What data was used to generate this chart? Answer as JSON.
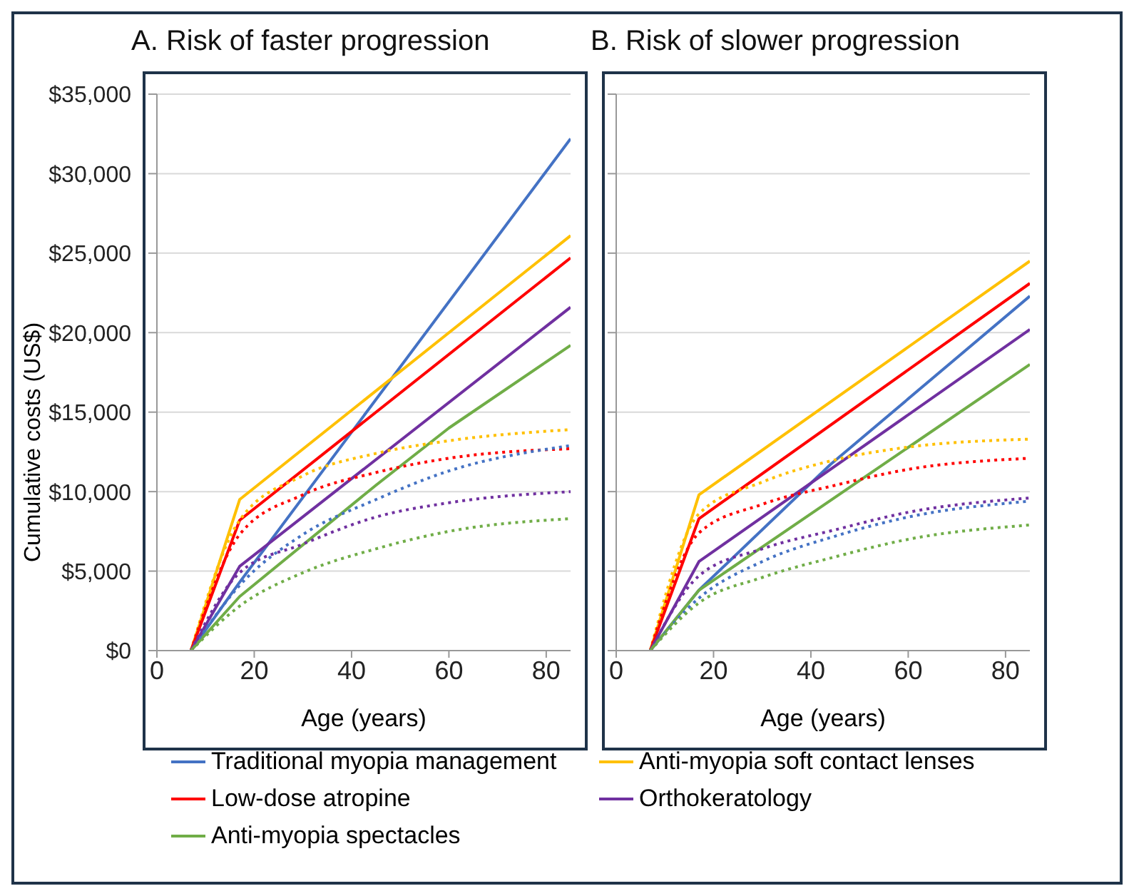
{
  "chart_data": [
    {
      "type": "line",
      "title": "A. Risk of faster progression",
      "xlabel": "Age (years)",
      "ylabel": "Cumulative costs (US$)",
      "xlim": [
        0,
        85
      ],
      "xticks": [
        0,
        20,
        40,
        60,
        80
      ],
      "ylim": [
        0,
        35000
      ],
      "yticks": [
        {
          "value": 0,
          "label": "$0"
        },
        {
          "value": 5000,
          "label": "$5,000"
        },
        {
          "value": 10000,
          "label": "$10,000"
        },
        {
          "value": 15000,
          "label": "$15,000"
        },
        {
          "value": 20000,
          "label": "$20,000"
        },
        {
          "value": 25000,
          "label": "$25,000"
        },
        {
          "value": 30000,
          "label": "$30,000"
        },
        {
          "value": 35000,
          "label": "$35,000"
        }
      ],
      "grid": "y",
      "legend": "bottom",
      "series": [
        {
          "name": "Traditional myopia management",
          "color": "#4472c4",
          "x": [
            7,
            17,
            85
          ],
          "values": [
            0,
            4300,
            32200
          ]
        },
        {
          "name": "Anti-myopia soft contact lenses",
          "color": "#ffc000",
          "x": [
            7,
            17,
            85
          ],
          "values": [
            0,
            9500,
            26100
          ]
        },
        {
          "name": "Low-dose atropine",
          "color": "#ff0000",
          "x": [
            7,
            17,
            85
          ],
          "values": [
            0,
            8200,
            24700
          ]
        },
        {
          "name": "Orthokeratology",
          "color": "#7030a0",
          "x": [
            7,
            17,
            85
          ],
          "values": [
            0,
            5300,
            21600
          ]
        },
        {
          "name": "Anti-myopia spectacles",
          "color": "#70ad47",
          "x": [
            7,
            17,
            45,
            60,
            85
          ],
          "values": [
            0,
            3400,
            10400,
            14000,
            19200
          ]
        },
        {
          "color": "#ffc000",
          "line_style": "dotted",
          "x": [
            7,
            17,
            30,
            45,
            60,
            85
          ],
          "values": [
            0,
            8200,
            11000,
            12400,
            13200,
            13900
          ]
        },
        {
          "color": "#ff0000",
          "line_style": "dotted",
          "x": [
            7,
            17,
            30,
            45,
            60,
            85
          ],
          "values": [
            0,
            7300,
            9800,
            11200,
            12100,
            12700
          ]
        },
        {
          "color": "#4472c4",
          "line_style": "dotted",
          "x": [
            7,
            17,
            30,
            45,
            60,
            85
          ],
          "values": [
            0,
            4100,
            7300,
            9500,
            11300,
            12900
          ]
        },
        {
          "color": "#7030a0",
          "line_style": "dotted",
          "x": [
            7,
            17,
            30,
            45,
            60,
            85
          ],
          "values": [
            0,
            4900,
            6700,
            8400,
            9300,
            10000
          ]
        },
        {
          "color": "#70ad47",
          "line_style": "dotted",
          "x": [
            7,
            17,
            30,
            45,
            60,
            85
          ],
          "values": [
            0,
            2800,
            4900,
            6400,
            7500,
            8300
          ]
        }
      ]
    },
    {
      "type": "line",
      "title": "B. Risk of slower progression",
      "xlabel": "Age (years)",
      "xlim": [
        0,
        85
      ],
      "xticks": [
        0,
        20,
        40,
        60,
        80
      ],
      "ylim": [
        0,
        35000
      ],
      "yticks": [
        0,
        5000,
        10000,
        15000,
        20000,
        25000,
        30000,
        35000
      ],
      "tick_labels": "x",
      "grid": "y",
      "legend": "bottom",
      "series": [
        {
          "name": "Traditional myopia management",
          "color": "#4472c4",
          "x": [
            7,
            17,
            44,
            85
          ],
          "values": [
            0,
            3800,
            11700,
            22300
          ]
        },
        {
          "name": "Anti-myopia soft contact lenses",
          "color": "#ffc000",
          "x": [
            7,
            17,
            85
          ],
          "values": [
            0,
            9800,
            24500
          ]
        },
        {
          "name": "Low-dose atropine",
          "color": "#ff0000",
          "x": [
            7,
            17,
            85
          ],
          "values": [
            0,
            8300,
            23100
          ]
        },
        {
          "name": "Orthokeratology",
          "color": "#7030a0",
          "x": [
            7,
            17,
            85
          ],
          "values": [
            0,
            5600,
            20200
          ]
        },
        {
          "name": "Anti-myopia spectacles",
          "color": "#70ad47",
          "x": [
            7,
            17,
            85
          ],
          "values": [
            0,
            3800,
            18000
          ]
        },
        {
          "color": "#ffc000",
          "line_style": "dotted",
          "x": [
            7,
            17,
            30,
            45,
            60,
            85
          ],
          "values": [
            0,
            8600,
            10600,
            12000,
            12800,
            13300
          ]
        },
        {
          "color": "#ff0000",
          "line_style": "dotted",
          "x": [
            7,
            17,
            30,
            45,
            60,
            85
          ],
          "values": [
            0,
            7400,
            9200,
            10400,
            11400,
            12100
          ]
        },
        {
          "color": "#7030a0",
          "line_style": "dotted",
          "x": [
            7,
            17,
            30,
            45,
            60,
            85
          ],
          "values": [
            0,
            4700,
            6400,
            7600,
            8700,
            9600
          ]
        },
        {
          "color": "#4472c4",
          "line_style": "dotted",
          "x": [
            7,
            17,
            30,
            45,
            60,
            85
          ],
          "values": [
            0,
            3300,
            5600,
            7200,
            8400,
            9400
          ]
        },
        {
          "color": "#70ad47",
          "line_style": "dotted",
          "x": [
            7,
            17,
            30,
            45,
            60,
            85
          ],
          "values": [
            0,
            3000,
            4600,
            5900,
            7000,
            7900
          ]
        }
      ]
    }
  ]
}
